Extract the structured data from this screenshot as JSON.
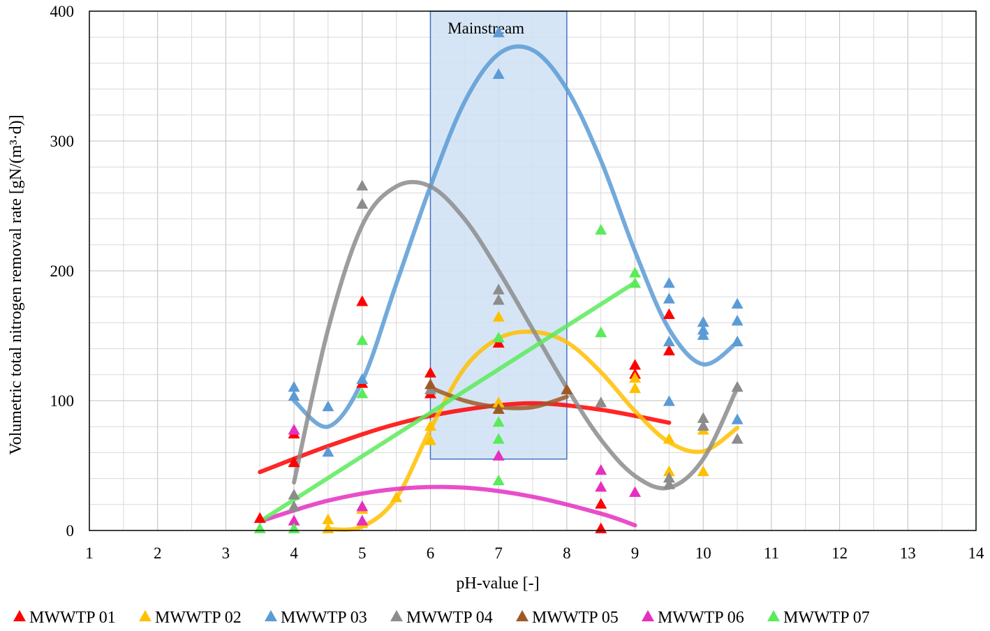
{
  "chart_data": {
    "type": "scatter",
    "xlabel": "pH-value [-]",
    "ylabel": "Volumetric total nitrogen removal rate [gN/(m³·d)]",
    "xlim": [
      1,
      14
    ],
    "ylim": [
      0,
      400
    ],
    "x_ticks": [
      1,
      2,
      3,
      4,
      5,
      6,
      7,
      8,
      9,
      10,
      11,
      12,
      13,
      14
    ],
    "y_ticks": [
      0,
      100,
      200,
      300,
      400
    ],
    "x_tick_labels": [
      "1",
      "2",
      "3",
      "4",
      "5",
      "6",
      "7",
      "8",
      "9",
      "10",
      "11",
      "12",
      "13",
      "14"
    ],
    "y_tick_labels": [
      "0",
      "100",
      "200",
      "300",
      "400"
    ],
    "grid": true,
    "legend_position": "bottom",
    "band": {
      "label": "Mainstream",
      "x": [
        6,
        8
      ],
      "y": [
        55,
        400
      ],
      "color": "#cfe0f3",
      "edge_color": "#4472c4"
    },
    "series": [
      {
        "name": "MWWTP 01",
        "color": "#ff0000",
        "points": [
          [
            3.5,
            9
          ],
          [
            4,
            52
          ],
          [
            4,
            74
          ],
          [
            5,
            113
          ],
          [
            5,
            176
          ],
          [
            6,
            105
          ],
          [
            6,
            121
          ],
          [
            7,
            144
          ],
          [
            8.5,
            1
          ],
          [
            8.5,
            20
          ],
          [
            9,
            120
          ],
          [
            9,
            127
          ],
          [
            9.5,
            138
          ],
          [
            9.5,
            166
          ]
        ],
        "trend": [
          [
            3.5,
            45
          ],
          [
            4.5,
            65
          ],
          [
            5.5,
            82
          ],
          [
            6.5,
            93
          ],
          [
            7.5,
            98
          ],
          [
            8.5,
            93
          ],
          [
            9.5,
            83
          ]
        ]
      },
      {
        "name": "MWWTP 02",
        "color": "#ffc000",
        "points": [
          [
            4.5,
            1
          ],
          [
            4.5,
            8
          ],
          [
            5,
            5
          ],
          [
            5,
            16
          ],
          [
            5.5,
            25
          ],
          [
            6,
            69
          ],
          [
            6,
            80
          ],
          [
            7,
            93
          ],
          [
            7,
            98
          ],
          [
            7,
            164
          ],
          [
            8.5,
            98
          ],
          [
            9,
            109
          ],
          [
            9,
            117
          ],
          [
            9.5,
            45
          ],
          [
            9.5,
            70
          ],
          [
            10,
            45
          ],
          [
            10,
            77
          ]
        ],
        "trend": [
          [
            4.5,
            1
          ],
          [
            5,
            3
          ],
          [
            5.5,
            25
          ],
          [
            6,
            78
          ],
          [
            6.5,
            125
          ],
          [
            7,
            148
          ],
          [
            7.5,
            153
          ],
          [
            8,
            145
          ],
          [
            8.5,
            122
          ],
          [
            9,
            92
          ],
          [
            9.5,
            68
          ],
          [
            10,
            61
          ],
          [
            10.5,
            79
          ]
        ]
      },
      {
        "name": "MWWTP 03",
        "color": "#5b9bd5",
        "points": [
          [
            4,
            103
          ],
          [
            4,
            110
          ],
          [
            4.5,
            60
          ],
          [
            4.5,
            95
          ],
          [
            5,
            116
          ],
          [
            7,
            351
          ],
          [
            7,
            383
          ],
          [
            9.5,
            99
          ],
          [
            9.5,
            145
          ],
          [
            9.5,
            178
          ],
          [
            9.5,
            190
          ],
          [
            10,
            150
          ],
          [
            10,
            154
          ],
          [
            10,
            160
          ],
          [
            10.5,
            85
          ],
          [
            10.5,
            145
          ],
          [
            10.5,
            161
          ],
          [
            10.5,
            174
          ]
        ],
        "trend": [
          [
            4,
            100
          ],
          [
            4.5,
            80
          ],
          [
            5,
            115
          ],
          [
            5.5,
            190
          ],
          [
            6,
            265
          ],
          [
            6.5,
            330
          ],
          [
            7,
            367
          ],
          [
            7.5,
            370
          ],
          [
            8,
            340
          ],
          [
            8.5,
            285
          ],
          [
            9,
            215
          ],
          [
            9.5,
            155
          ],
          [
            10,
            128
          ],
          [
            10.5,
            145
          ]
        ]
      },
      {
        "name": "MWWTP 04",
        "color": "#8c8c8c",
        "points": [
          [
            4,
            18
          ],
          [
            4,
            27
          ],
          [
            5,
            251
          ],
          [
            5,
            265
          ],
          [
            6,
            108
          ],
          [
            7,
            177
          ],
          [
            7,
            185
          ],
          [
            8.5,
            98
          ],
          [
            9.5,
            35
          ],
          [
            9.5,
            40
          ],
          [
            10,
            80
          ],
          [
            10,
            86
          ],
          [
            10.5,
            70
          ],
          [
            10.5,
            110
          ]
        ],
        "trend": [
          [
            4,
            37
          ],
          [
            4.5,
            155
          ],
          [
            5,
            235
          ],
          [
            5.5,
            265
          ],
          [
            6,
            265
          ],
          [
            6.5,
            240
          ],
          [
            7,
            200
          ],
          [
            7.5,
            155
          ],
          [
            8,
            110
          ],
          [
            8.5,
            70
          ],
          [
            9,
            42
          ],
          [
            9.5,
            33
          ],
          [
            10,
            55
          ],
          [
            10.5,
            110
          ]
        ]
      },
      {
        "name": "MWWTP 05",
        "color": "#9e5a26",
        "points": [
          [
            6,
            112
          ],
          [
            7,
            93
          ],
          [
            8,
            108
          ]
        ],
        "trend": [
          [
            6,
            110
          ],
          [
            6.5,
            100
          ],
          [
            7,
            95
          ],
          [
            7.5,
            95
          ],
          [
            8,
            103
          ]
        ]
      },
      {
        "name": "MWWTP 06",
        "color": "#e52fbf",
        "points": [
          [
            4,
            7
          ],
          [
            4,
            77
          ],
          [
            5,
            7
          ],
          [
            5,
            18
          ],
          [
            7,
            57
          ],
          [
            8.5,
            33
          ],
          [
            8.5,
            46
          ],
          [
            9,
            29
          ]
        ],
        "trend": [
          [
            3.5,
            7
          ],
          [
            4.5,
            23
          ],
          [
            5.5,
            32
          ],
          [
            6.5,
            33
          ],
          [
            7.5,
            26
          ],
          [
            8.5,
            13
          ],
          [
            9,
            4
          ]
        ]
      },
      {
        "name": "MWWTP 07",
        "color": "#5aeb5a",
        "points": [
          [
            3.5,
            1
          ],
          [
            4,
            1
          ],
          [
            5,
            105
          ],
          [
            5,
            146
          ],
          [
            7,
            38
          ],
          [
            7,
            70
          ],
          [
            7,
            83
          ],
          [
            7,
            148
          ],
          [
            8.5,
            152
          ],
          [
            8.5,
            231
          ],
          [
            9,
            190
          ],
          [
            9,
            198
          ]
        ],
        "trend": [
          [
            3.5,
            7
          ],
          [
            9,
            191
          ]
        ]
      }
    ]
  }
}
